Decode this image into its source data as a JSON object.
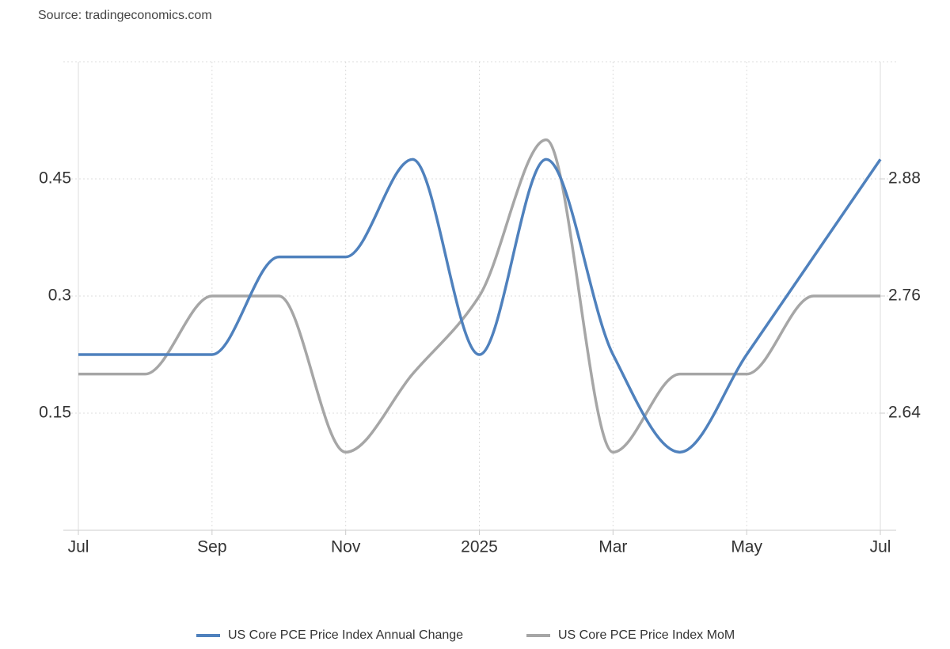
{
  "source": "Source: tradingeconomics.com",
  "chart_data": {
    "type": "line",
    "categories": [
      "Jul",
      null,
      "Sep",
      null,
      "Nov",
      null,
      "2025",
      null,
      "Mar",
      null,
      "May",
      null,
      "Jul"
    ],
    "series": [
      {
        "name": "US Core PCE Price Index Annual Change",
        "color": "#4f81bd",
        "axis": "y2",
        "values": [
          2.7,
          2.7,
          2.7,
          2.8,
          2.8,
          2.9,
          2.7,
          2.9,
          2.7,
          2.6,
          2.7,
          2.8,
          2.9
        ]
      },
      {
        "name": "US Core PCE Price Index MoM",
        "color": "#a6a6a6",
        "values": [
          0.2,
          0.2,
          0.3,
          0.3,
          0.1,
          0.2,
          0.3,
          0.5,
          0.1,
          0.2,
          0.2,
          0.3,
          0.3
        ]
      }
    ],
    "ylim": [
      0,
      0.6
    ],
    "yticks": [
      0.15,
      0.3,
      0.45
    ],
    "y2lim": [
      2.52,
      3.0
    ],
    "y2ticks": [
      2.64,
      2.76,
      2.88
    ],
    "grid": true,
    "legend": "bottom"
  }
}
